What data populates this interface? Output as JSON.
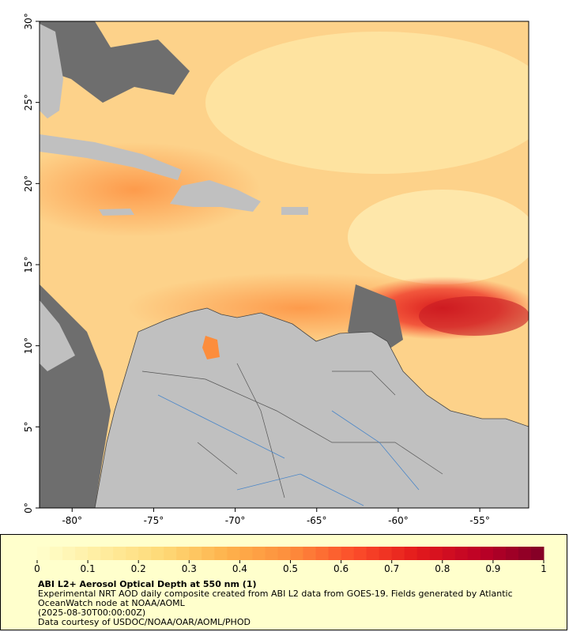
{
  "map": {
    "lon_range": [
      -82,
      -52
    ],
    "lat_range": [
      0,
      30
    ],
    "xticks": [
      {
        "value": -80,
        "label": "-80°"
      },
      {
        "value": -75,
        "label": "-75°"
      },
      {
        "value": -70,
        "label": "-70°"
      },
      {
        "value": -65,
        "label": "-65°"
      },
      {
        "value": -60,
        "label": "-60°"
      },
      {
        "value": -55,
        "label": "-55°"
      }
    ],
    "yticks": [
      {
        "value": 0,
        "label": "0°"
      },
      {
        "value": 5,
        "label": "5°"
      },
      {
        "value": 10,
        "label": "10°"
      },
      {
        "value": 15,
        "label": "15°"
      },
      {
        "value": 20,
        "label": "20°"
      },
      {
        "value": 25,
        "label": "25°"
      },
      {
        "value": 30,
        "label": "30°"
      }
    ]
  },
  "colorbar": {
    "range": [
      0,
      1
    ],
    "ticks": [
      0,
      0.1,
      0.2,
      0.3,
      0.4,
      0.5,
      0.6,
      0.7,
      0.8,
      0.9,
      1
    ],
    "colors": [
      "#ffffcc",
      "#ffeda0",
      "#fed976",
      "#feb24c",
      "#fd8d3c",
      "#fc4e2a",
      "#e31a1c",
      "#bd0026",
      "#800026"
    ]
  },
  "caption": {
    "title": "ABI L2+ Aerosol Optical Depth at 550 nm (1)",
    "description": "Experimental NRT AOD daily composite created from ABI L2 data from GOES-19. Fields generated by Atlantic OceanWatch node at NOAA/AOML",
    "time": "(2025-08-30T00:00:00Z)",
    "credit": "Data courtesy of USDOC/NOAA/OAR/AOML/PHOD"
  }
}
